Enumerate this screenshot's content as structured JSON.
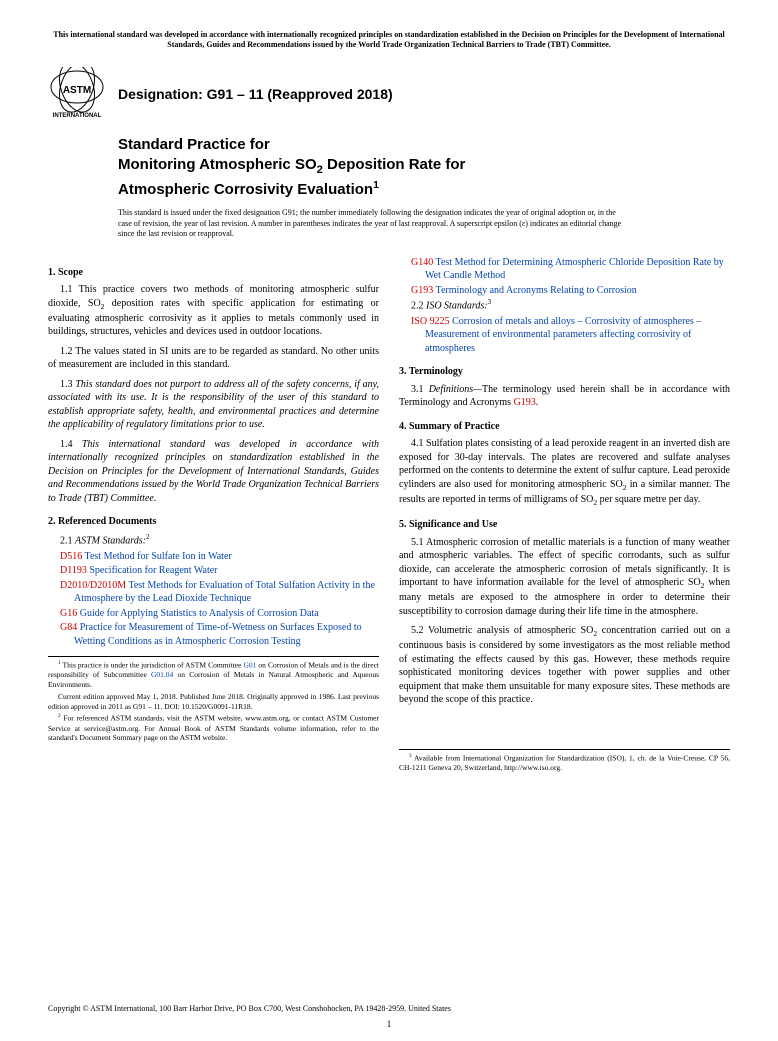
{
  "statement": "This international standard was developed in accordance with internationally recognized principles on standardization established in the Decision on Principles for the Development of International Standards, Guides and Recommendations issued by the World Trade Organization Technical Barriers to Trade (TBT) Committee.",
  "designation_label": "Designation: G91 – 11 (Reapproved 2018)",
  "title_line1": "Standard Practice for",
  "title_line2_a": "Monitoring Atmospheric SO",
  "title_line2_b": " Deposition Rate for",
  "title_line3": "Atmospheric Corrosivity Evaluation",
  "issue_note": "This standard is issued under the fixed designation G91; the number immediately following the designation indicates the year of original adoption or, in the case of revision, the year of last revision. A number in parentheses indicates the year of last reapproval. A superscript epsilon (ε) indicates an editorial change since the last revision or reapproval.",
  "sec1_head": "1. Scope",
  "sec1_1a": "1.1 This practice covers two methods of monitoring atmospheric sulfur dioxide, SO",
  "sec1_1b": " deposition rates with specific application for estimating or evaluating atmospheric corrosivity as it applies to metals commonly used in buildings, structures, vehicles and devices used in outdoor locations.",
  "sec1_2": "1.2 The values stated in SI units are to be regarded as standard. No other units of measurement are included in this standard.",
  "sec1_3": "1.3 This standard does not purport to address all of the safety concerns, if any, associated with its use. It is the responsibility of the user of this standard to establish appropriate safety, health, and environmental practices and determine the applicability of regulatory limitations prior to use.",
  "sec1_4": "1.4 This international standard was developed in accordance with internationally recognized principles on standardization established in the Decision on Principles for the Development of International Standards, Guides and Recommendations issued by the World Trade Organization Technical Barriers to Trade (TBT) Committee.",
  "sec2_head": "2. Referenced Documents",
  "sec2_1": "2.1 ",
  "sec2_1_label": "ASTM Standards:",
  "refs": [
    {
      "code": "D516",
      "text": " Test Method for Sulfate Ion in Water"
    },
    {
      "code": "D1193",
      "text": " Specification for Reagent Water"
    },
    {
      "code": "D2010/D2010M",
      "text": " Test Methods for Evaluation of Total Sulfation Activity in the Atmosphere by the Lead Dioxide Technique"
    },
    {
      "code": "G16",
      "text": " Guide for Applying Statistics to Analysis of Corrosion Data"
    },
    {
      "code": "G84",
      "text": " Practice for Measurement of Time-of-Wetness on Surfaces Exposed to Wetting Conditions as in Atmospheric Corrosion Testing"
    }
  ],
  "refs_r": [
    {
      "code": "G140",
      "text": " Test Method for Determining Atmospheric Chloride Deposition Rate by Wet Candle Method"
    },
    {
      "code": "G193",
      "text": " Terminology and Acronyms Relating to Corrosion"
    }
  ],
  "sec2_2": "2.2 ",
  "sec2_2_label": "ISO Standards:",
  "iso_code": "ISO 9225",
  "iso_text": " Corrosion of metals and alloys – Corrosivity of atmospheres – Measurement of environmental parameters affecting corrosivity of atmospheres",
  "sec3_head": "3. Terminology",
  "sec3_1a": "3.1 ",
  "sec3_1_def": "Definitions—",
  "sec3_1b": "The terminology used herein shall be in accordance with Terminology and Acronyms ",
  "sec3_1c": "G193",
  "sec3_1d": ".",
  "sec4_head": "4. Summary of Practice",
  "sec4_1a": "4.1 Sulfation plates consisting of a lead peroxide reagent in an inverted dish are exposed for 30-day intervals. The plates are recovered and sulfate analyses performed on the contents to determine the extent of sulfur capture. Lead peroxide cylinders are also used for monitoring atmospheric SO",
  "sec4_1b": " in a similar manner. The results are reported in terms of milligrams of SO",
  "sec4_1c": " per square metre per day.",
  "sec5_head": "5. Significance and Use",
  "sec5_1a": "5.1 Atmospheric corrosion of metallic materials is a function of many weather and atmospheric variables. The effect of specific corrodants, such as sulfur dioxide, can accelerate the atmospheric corrosion of metals significantly. It is important to have information available for the level of atmospheric SO",
  "sec5_1b": " when many metals are exposed to the atmosphere in order to determine their susceptibility to corrosion damage during their life time in the atmosphere.",
  "sec5_2a": "5.2 Volumetric analysis of atmospheric SO",
  "sec5_2b": " concentration carried out on a continuous basis is considered by some investigators as the most reliable method of estimating the effects caused by this gas. However, these methods require sophisticated monitoring devices together with power supplies and other equipment that make them unsuitable for many exposure sites. These methods are beyond the scope of this practice.",
  "fn1a": " This practice is under the jurisdiction of ASTM Committee ",
  "fn1b": "G01",
  "fn1c": " on Corrosion of Metals and is the direct responsibility of Subcommittee ",
  "fn1d": "G01.04",
  "fn1e": " on Corrosion of Metals in Natural Atmospheric and Aqueous Environments.",
  "fn1f": "Current edition approved May 1, 2018. Published June 2018. Originally approved in 1986. Last previous edition approved in 2011 as G91 – 11. DOI: 10.1520/G0091-11R18.",
  "fn2": " For referenced ASTM standards, visit the ASTM website, www.astm.org, or contact ASTM Customer Service at service@astm.org. For Annual Book of ASTM Standards volume information, refer to the standard's Document Summary page on the ASTM website.",
  "fn3": " Available from International Organization for Standardization (ISO), 1, ch. de la Voie-Creuse, CP 56, CH-1211 Geneva 20, Switzerland, http://www.iso.org.",
  "copyright": "Copyright © ASTM International, 100 Barr Harbor Drive, PO Box C700, West Conshohocken, PA 19428-2959. United States",
  "page_num": "1"
}
